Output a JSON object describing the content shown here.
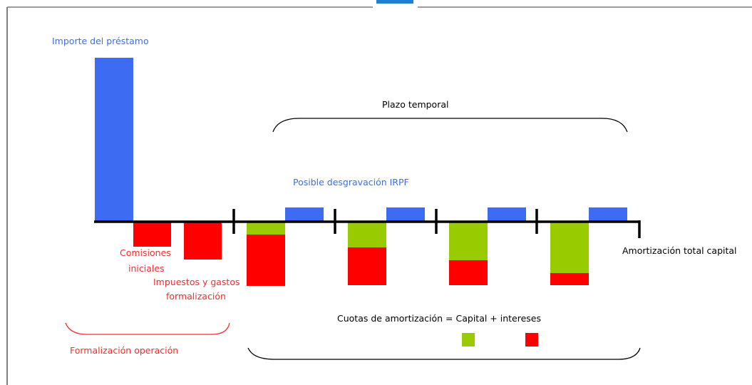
{
  "colors": {
    "blue": "#3d6cf2",
    "red": "#ff0000",
    "green": "#99cc00",
    "red_text": "#ff2a2a",
    "blue_text": "#3d6cf2",
    "black": "#000000",
    "frame": "#7f7f7f"
  },
  "labels": {
    "importe": "Importe del préstamo",
    "comisiones_1": "Comisiones",
    "comisiones_2": "iniciales",
    "impuestos_1": "Impuestos y gastos",
    "impuestos_2": "formalización",
    "formalizacion": "Formalización operación",
    "plazo": "Plazo temporal",
    "desgravacion": "Posible desgravación IRPF",
    "amortizacion_total": "Amortización total capital",
    "cuotas": "Cuotas de amortización = Capital + intereses"
  },
  "chart_data": {
    "type": "bar",
    "note_units": "relative magnitudes (illustrative diagram, no axis)",
    "initial": {
      "loan_amount": 230,
      "commissions": -35,
      "taxes_and_fees": -53
    },
    "periods": [
      {
        "capital": 18,
        "interest": 72,
        "tax_relief": 20
      },
      {
        "capital": 36,
        "interest": 53,
        "tax_relief": 20
      },
      {
        "capital": 54,
        "interest": 35,
        "tax_relief": 20
      },
      {
        "capital": 72,
        "interest": 17,
        "tax_relief": 20
      }
    ]
  }
}
